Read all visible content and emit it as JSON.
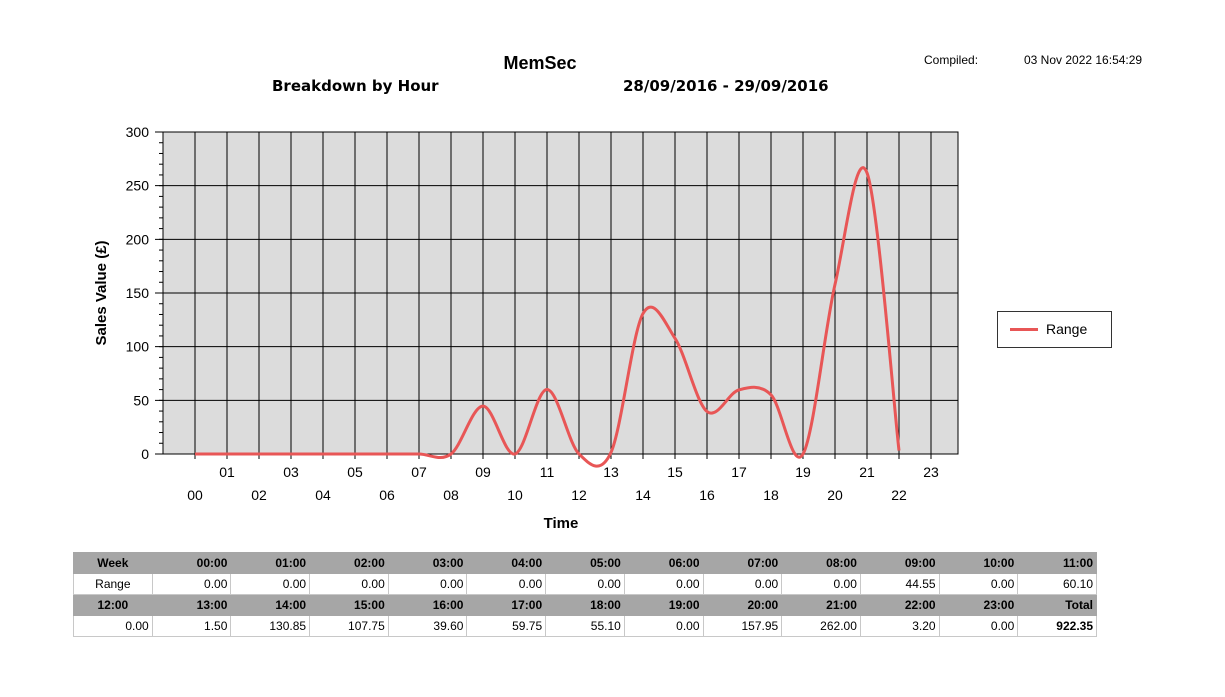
{
  "header": {
    "title": "MemSec",
    "subtitle": "Breakdown by Hour",
    "date_range": "28/09/2016 - 29/09/2016",
    "compiled_label": "Compiled:",
    "compiled_value": "03 Nov 2022 16:54:29"
  },
  "chart_data": {
    "type": "line",
    "xlabel": "Time",
    "ylabel": "Sales Value (£)",
    "ylim": [
      0,
      300
    ],
    "yticks": [
      "0",
      "50",
      "100",
      "150",
      "200",
      "250",
      "300"
    ],
    "categories": [
      "00",
      "01",
      "02",
      "03",
      "04",
      "05",
      "06",
      "07",
      "08",
      "09",
      "10",
      "11",
      "12",
      "13",
      "14",
      "15",
      "16",
      "17",
      "18",
      "19",
      "20",
      "21",
      "22",
      "23"
    ],
    "series": [
      {
        "name": "Range",
        "color": "#e85656",
        "values": [
          0,
          0,
          0,
          0,
          0,
          0,
          0,
          0,
          0,
          44.55,
          0,
          60.1,
          0,
          1.5,
          130.85,
          107.75,
          39.6,
          59.75,
          55.1,
          0,
          157.95,
          262.0,
          3.2,
          0
        ]
      }
    ],
    "legend_position": "right",
    "grid": true,
    "plot_background": "#dcdcdc"
  },
  "legend": {
    "label": "Range"
  },
  "table": {
    "row1": [
      "Week",
      "00:00",
      "01:00",
      "02:00",
      "03:00",
      "04:00",
      "05:00",
      "06:00",
      "07:00",
      "08:00",
      "09:00",
      "10:00",
      "11:00"
    ],
    "row2": [
      "Range",
      "0.00",
      "0.00",
      "0.00",
      "0.00",
      "0.00",
      "0.00",
      "0.00",
      "0.00",
      "0.00",
      "44.55",
      "0.00",
      "60.10"
    ],
    "row3": [
      "12:00",
      "13:00",
      "14:00",
      "15:00",
      "16:00",
      "17:00",
      "18:00",
      "19:00",
      "20:00",
      "21:00",
      "22:00",
      "23:00",
      "Total"
    ],
    "row4": [
      "0.00",
      "1.50",
      "130.85",
      "107.75",
      "39.60",
      "59.75",
      "55.10",
      "0.00",
      "157.95",
      "262.00",
      "3.20",
      "0.00",
      "922.35"
    ]
  }
}
